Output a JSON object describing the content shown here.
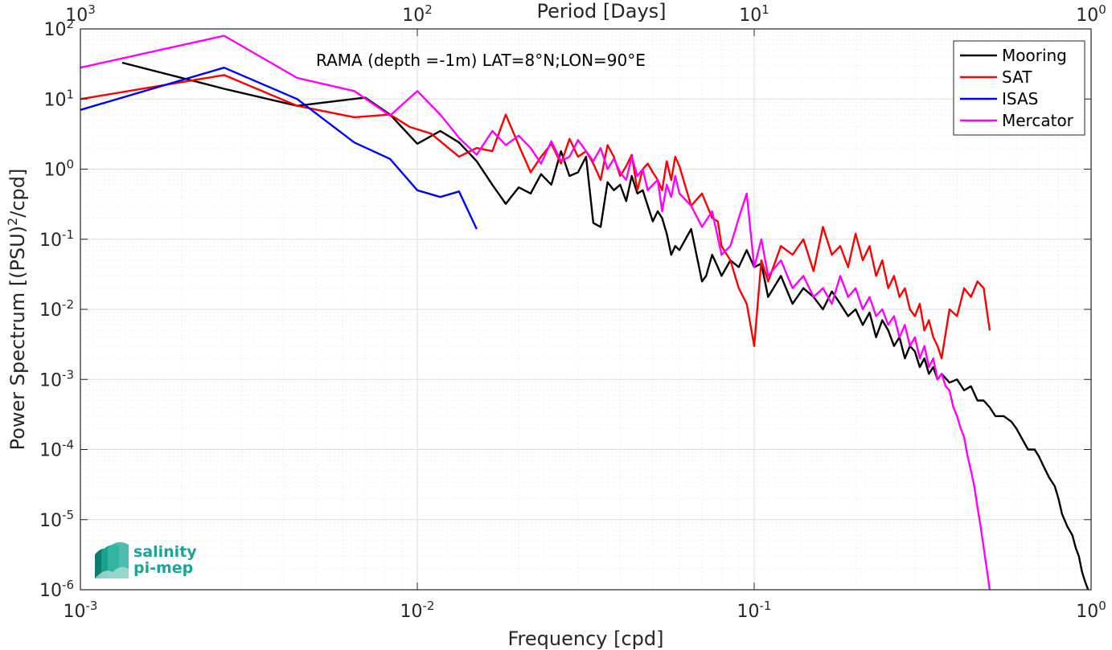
{
  "chart_data": {
    "type": "line",
    "annotation": "RAMA (depth =-1m) LAT=8°N;LON=90°E",
    "xlabel": "Frequency [cpd]",
    "ylabel": "Power Spectrum [(PSU)",
    "ylabel_exponent": "2",
    "ylabel_suffix": "/cpd]",
    "top_axis_label": "Period [Days]",
    "x_scale": "log",
    "y_scale": "log",
    "xlim": [
      0.001,
      1
    ],
    "ylim": [
      1e-06,
      100
    ],
    "grid": true,
    "legend_position": "top-right",
    "x_ticks": [
      {
        "value": 0.001,
        "base": "10",
        "exp": "-3"
      },
      {
        "value": 0.01,
        "base": "10",
        "exp": "-2"
      },
      {
        "value": 0.1,
        "base": "10",
        "exp": "-1"
      },
      {
        "value": 1,
        "base": "10",
        "exp": "0"
      }
    ],
    "y_ticks": [
      {
        "value": 100,
        "base": "10",
        "exp": "2"
      },
      {
        "value": 10,
        "base": "10",
        "exp": "1"
      },
      {
        "value": 1,
        "base": "10",
        "exp": "0"
      },
      {
        "value": 0.1,
        "base": "10",
        "exp": "-1"
      },
      {
        "value": 0.01,
        "base": "10",
        "exp": "-2"
      },
      {
        "value": 0.001,
        "base": "10",
        "exp": "-3"
      },
      {
        "value": 0.0001,
        "base": "10",
        "exp": "-4"
      },
      {
        "value": 1e-05,
        "base": "10",
        "exp": "-5"
      },
      {
        "value": 1e-06,
        "base": "10",
        "exp": "-6"
      }
    ],
    "top_ticks": [
      {
        "value": 0.001,
        "base": "10",
        "exp": "3"
      },
      {
        "value": 0.01,
        "base": "10",
        "exp": "2"
      },
      {
        "value": 0.1,
        "base": "10",
        "exp": "1"
      },
      {
        "value": 1,
        "base": "10",
        "exp": "0"
      }
    ],
    "series": [
      {
        "name": "Mooring",
        "color": "#000000",
        "x": [
          0.00133,
          0.00267,
          0.0044,
          0.007,
          0.0083,
          0.01,
          0.0117,
          0.0133,
          0.015,
          0.0167,
          0.0183,
          0.02,
          0.0217,
          0.0233,
          0.025,
          0.0267,
          0.0283,
          0.03,
          0.0317,
          0.0333,
          0.035,
          0.0367,
          0.0383,
          0.04,
          0.0417,
          0.0433,
          0.045,
          0.0467,
          0.0483,
          0.05,
          0.0517,
          0.0533,
          0.055,
          0.0567,
          0.0583,
          0.06,
          0.065,
          0.07,
          0.072,
          0.075,
          0.078,
          0.08,
          0.085,
          0.09,
          0.095,
          0.1,
          0.105,
          0.11,
          0.12,
          0.13,
          0.14,
          0.15,
          0.16,
          0.17,
          0.18,
          0.19,
          0.2,
          0.21,
          0.22,
          0.23,
          0.24,
          0.25,
          0.26,
          0.27,
          0.28,
          0.29,
          0.3,
          0.31,
          0.32,
          0.33,
          0.34,
          0.35,
          0.36,
          0.38,
          0.4,
          0.42,
          0.44,
          0.46,
          0.48,
          0.5,
          0.52,
          0.55,
          0.58,
          0.6,
          0.62,
          0.65,
          0.68,
          0.7,
          0.72,
          0.75,
          0.78,
          0.8,
          0.82,
          0.85,
          0.88,
          0.9,
          0.92,
          0.94,
          0.96,
          0.98
        ],
        "values": [
          33,
          14,
          8,
          10.5,
          6,
          2.3,
          3.5,
          2.4,
          1.3,
          0.6,
          0.32,
          0.55,
          0.45,
          0.85,
          0.6,
          1.8,
          0.8,
          0.9,
          1.5,
          0.17,
          0.15,
          0.65,
          0.5,
          0.6,
          0.35,
          0.8,
          0.45,
          0.5,
          0.3,
          0.18,
          0.25,
          0.2,
          0.12,
          0.06,
          0.08,
          0.07,
          0.14,
          0.025,
          0.03,
          0.06,
          0.04,
          0.03,
          0.05,
          0.04,
          0.07,
          0.04,
          0.045,
          0.015,
          0.03,
          0.012,
          0.02,
          0.015,
          0.01,
          0.018,
          0.012,
          0.008,
          0.01,
          0.006,
          0.009,
          0.004,
          0.007,
          0.005,
          0.003,
          0.004,
          0.002,
          0.003,
          0.0025,
          0.0015,
          0.002,
          0.0012,
          0.0015,
          0.001,
          0.0012,
          0.0009,
          0.001,
          0.0007,
          0.0008,
          0.0005,
          0.0005,
          0.0004,
          0.0003,
          0.0003,
          0.00025,
          0.0002,
          0.00015,
          0.0001,
          0.0001,
          8e-05,
          6e-05,
          4e-05,
          3e-05,
          2e-05,
          1.2e-05,
          8e-06,
          6e-06,
          4e-06,
          3e-06,
          1.8e-06,
          1.3e-06,
          1e-06
        ]
      },
      {
        "name": "SAT",
        "color": "#ff0000",
        "x": [
          0.001,
          0.00267,
          0.0044,
          0.0065,
          0.0083,
          0.0095,
          0.011,
          0.0117,
          0.0133,
          0.015,
          0.0167,
          0.0183,
          0.02,
          0.0217,
          0.0233,
          0.025,
          0.0267,
          0.0283,
          0.03,
          0.0317,
          0.0333,
          0.035,
          0.0367,
          0.0383,
          0.04,
          0.0417,
          0.0433,
          0.045,
          0.0467,
          0.0483,
          0.05,
          0.0517,
          0.0533,
          0.055,
          0.0567,
          0.0583,
          0.06,
          0.065,
          0.07,
          0.075,
          0.078,
          0.08,
          0.085,
          0.09,
          0.095,
          0.1,
          0.105,
          0.11,
          0.12,
          0.13,
          0.14,
          0.15,
          0.16,
          0.17,
          0.18,
          0.19,
          0.2,
          0.21,
          0.22,
          0.23,
          0.24,
          0.25,
          0.26,
          0.27,
          0.28,
          0.29,
          0.3,
          0.31,
          0.32,
          0.33,
          0.34,
          0.35,
          0.36,
          0.38,
          0.4,
          0.42,
          0.44,
          0.46,
          0.48,
          0.5
        ],
        "values": [
          10,
          22,
          8,
          5.5,
          6,
          4,
          3.2,
          2.5,
          1.5,
          2,
          1.8,
          6,
          2.2,
          0.9,
          1.5,
          2.3,
          1.2,
          2.7,
          1.5,
          1.8,
          1.2,
          0.7,
          2.2,
          1.5,
          0.8,
          1.1,
          1.6,
          0.5,
          1,
          1.2,
          0.9,
          0.7,
          0.5,
          1.3,
          0.7,
          1.5,
          1.1,
          0.3,
          0.45,
          0.2,
          0.18,
          0.08,
          0.05,
          0.02,
          0.012,
          0.003,
          0.05,
          0.025,
          0.08,
          0.06,
          0.1,
          0.035,
          0.15,
          0.06,
          0.08,
          0.04,
          0.12,
          0.05,
          0.08,
          0.03,
          0.05,
          0.02,
          0.03,
          0.015,
          0.02,
          0.01,
          0.008,
          0.012,
          0.005,
          0.007,
          0.004,
          0.003,
          0.002,
          0.01,
          0.008,
          0.02,
          0.015,
          0.025,
          0.02,
          0.005
        ]
      },
      {
        "name": "ISAS",
        "color": "#0000ff",
        "x": [
          0.001,
          0.00267,
          0.0044,
          0.0065,
          0.0083,
          0.01,
          0.0117,
          0.0133,
          0.015
        ],
        "values": [
          7,
          28,
          10,
          2.4,
          1.4,
          0.5,
          0.4,
          0.48,
          0.14
        ]
      },
      {
        "name": "Mercator",
        "color": "#ff00ff",
        "x": [
          0.001,
          0.00267,
          0.0044,
          0.0065,
          0.0083,
          0.01,
          0.0117,
          0.0133,
          0.015,
          0.0167,
          0.0183,
          0.02,
          0.0217,
          0.0233,
          0.025,
          0.0267,
          0.0283,
          0.03,
          0.0317,
          0.0333,
          0.035,
          0.0367,
          0.0383,
          0.04,
          0.0417,
          0.0433,
          0.045,
          0.0467,
          0.0483,
          0.05,
          0.0517,
          0.0533,
          0.055,
          0.0567,
          0.0583,
          0.06,
          0.065,
          0.07,
          0.075,
          0.08,
          0.085,
          0.09,
          0.095,
          0.1,
          0.105,
          0.11,
          0.12,
          0.13,
          0.14,
          0.15,
          0.16,
          0.17,
          0.18,
          0.19,
          0.2,
          0.21,
          0.22,
          0.23,
          0.24,
          0.25,
          0.26,
          0.27,
          0.28,
          0.29,
          0.3,
          0.31,
          0.32,
          0.33,
          0.34,
          0.35,
          0.36,
          0.37,
          0.38,
          0.39,
          0.4,
          0.41,
          0.42,
          0.43,
          0.44,
          0.45,
          0.46,
          0.47,
          0.48,
          0.49,
          0.5
        ],
        "values": [
          28,
          80,
          20,
          13,
          5.8,
          13,
          6,
          2.8,
          1.6,
          3.5,
          2.2,
          3,
          2,
          1.2,
          2.5,
          1.3,
          1.5,
          2.6,
          1.8,
          1.3,
          2,
          1,
          1.4,
          0.9,
          0.7,
          1.5,
          0.8,
          1,
          0.5,
          0.6,
          0.7,
          0.25,
          0.6,
          0.4,
          0.8,
          0.45,
          0.3,
          0.15,
          0.25,
          0.06,
          0.08,
          0.2,
          0.45,
          0.04,
          0.1,
          0.03,
          0.05,
          0.02,
          0.03,
          0.015,
          0.02,
          0.012,
          0.03,
          0.015,
          0.02,
          0.01,
          0.015,
          0.008,
          0.01,
          0.006,
          0.008,
          0.004,
          0.006,
          0.003,
          0.004,
          0.002,
          0.003,
          0.0015,
          0.002,
          0.001,
          0.0012,
          0.0008,
          0.0007,
          0.0004,
          0.0003,
          0.0002,
          0.00015,
          8e-05,
          5e-05,
          3e-05,
          1.5e-05,
          8e-06,
          4e-06,
          2e-06,
          1e-06
        ]
      }
    ]
  },
  "logo": {
    "line1": "salinity",
    "line2": "pi-mep",
    "color": "#1aa596"
  }
}
